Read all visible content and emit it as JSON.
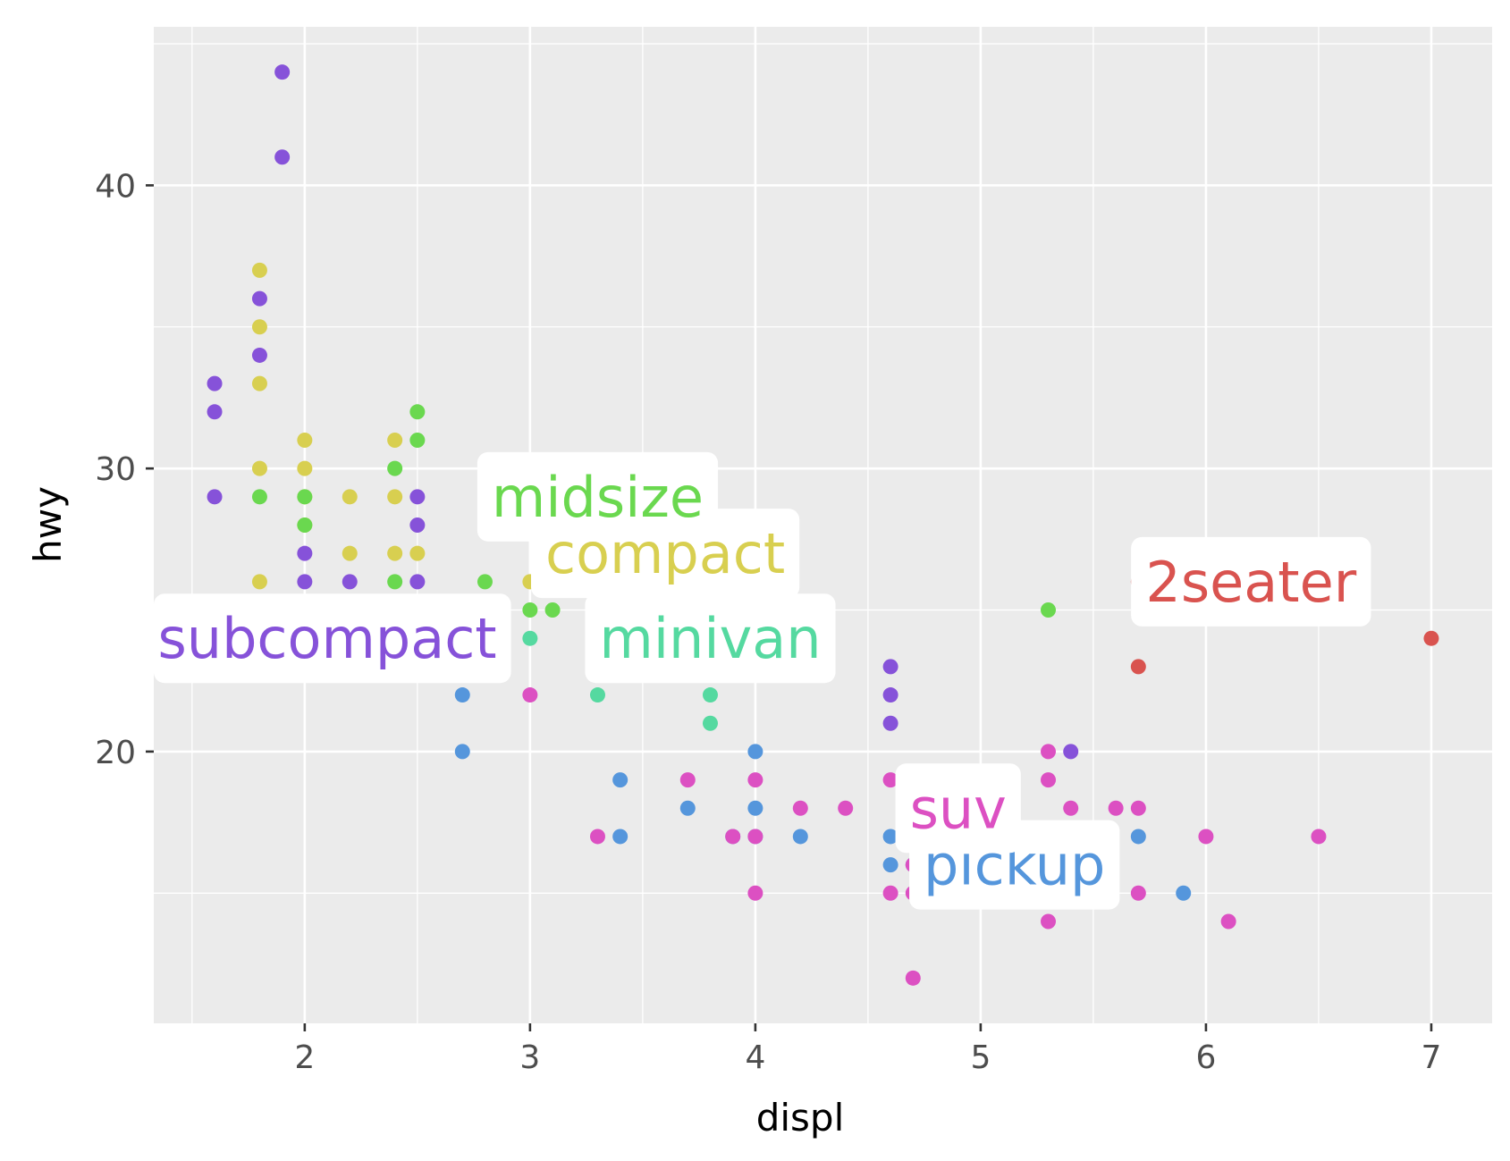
{
  "chart_data": {
    "type": "scatter",
    "xlabel": "displ",
    "ylabel": "hwy",
    "xlim": [
      1.33,
      7.27
    ],
    "ylim": [
      10.4,
      45.6
    ],
    "x_ticks": [
      2,
      3,
      4,
      5,
      6,
      7
    ],
    "y_ticks": [
      20,
      30,
      40
    ],
    "grid": true,
    "legend": "none",
    "series": [
      {
        "name": "2seater",
        "color": "#d9534f",
        "label_at": [
          6.2,
          26
        ],
        "points": [
          [
            5.7,
            26
          ],
          [
            5.7,
            23
          ],
          [
            6.2,
            26
          ],
          [
            6.2,
            25
          ],
          [
            7.0,
            24
          ]
        ]
      },
      {
        "name": "compact",
        "color": "#d8cf50",
        "label_at": [
          3.6,
          27
        ],
        "points": [
          [
            1.8,
            37
          ],
          [
            1.8,
            35
          ],
          [
            1.8,
            33
          ],
          [
            1.8,
            30
          ],
          [
            1.8,
            26
          ],
          [
            1.8,
            25
          ],
          [
            2.0,
            31
          ],
          [
            2.0,
            30
          ],
          [
            2.0,
            29
          ],
          [
            2.0,
            28
          ],
          [
            2.2,
            29
          ],
          [
            2.2,
            27
          ],
          [
            2.4,
            31
          ],
          [
            2.4,
            29
          ],
          [
            2.4,
            27
          ],
          [
            2.5,
            27
          ],
          [
            2.5,
            25
          ],
          [
            2.8,
            25
          ],
          [
            2.8,
            24
          ],
          [
            2.8,
            23
          ],
          [
            3.0,
            26
          ],
          [
            3.1,
            27
          ],
          [
            3.3,
            27
          ]
        ]
      },
      {
        "name": "midsize",
        "color": "#6ad84f",
        "label_at": [
          3.3,
          29
        ],
        "points": [
          [
            1.8,
            29
          ],
          [
            2.0,
            29
          ],
          [
            2.0,
            28
          ],
          [
            2.4,
            30
          ],
          [
            2.4,
            26
          ],
          [
            2.5,
            32
          ],
          [
            2.5,
            31
          ],
          [
            2.8,
            26
          ],
          [
            3.0,
            25
          ],
          [
            3.1,
            26
          ],
          [
            3.1,
            25
          ],
          [
            3.3,
            28
          ],
          [
            3.5,
            29
          ],
          [
            3.5,
            28
          ],
          [
            3.5,
            27
          ],
          [
            3.5,
            26
          ],
          [
            3.5,
            25
          ],
          [
            3.6,
            26
          ],
          [
            3.8,
            28
          ],
          [
            3.8,
            27
          ],
          [
            3.8,
            26
          ],
          [
            4.2,
            23
          ],
          [
            5.3,
            25
          ]
        ]
      },
      {
        "name": "minivan",
        "color": "#55d9a0",
        "label_at": [
          3.8,
          24
        ],
        "points": [
          [
            2.4,
            24
          ],
          [
            3.0,
            24
          ],
          [
            3.3,
            24
          ],
          [
            3.3,
            22
          ],
          [
            3.8,
            23
          ],
          [
            3.8,
            22
          ],
          [
            3.8,
            21
          ],
          [
            4.0,
            23
          ]
        ]
      },
      {
        "name": "pickup",
        "color": "#5596dc",
        "label_at": [
          5.15,
          16
        ],
        "points": [
          [
            2.7,
            22
          ],
          [
            2.7,
            20
          ],
          [
            3.4,
            19
          ],
          [
            3.4,
            17
          ],
          [
            3.7,
            18
          ],
          [
            3.9,
            17
          ],
          [
            4.0,
            20
          ],
          [
            4.0,
            18
          ],
          [
            4.0,
            17
          ],
          [
            4.2,
            17
          ],
          [
            4.6,
            17
          ],
          [
            4.6,
            16
          ],
          [
            4.7,
            16
          ],
          [
            5.2,
            17
          ],
          [
            5.2,
            16
          ],
          [
            5.2,
            15
          ],
          [
            5.4,
            15
          ],
          [
            5.7,
            17
          ],
          [
            5.9,
            15
          ]
        ]
      },
      {
        "name": "subcompact",
        "color": "#8652d9",
        "label_at": [
          2.1,
          24
        ],
        "points": [
          [
            1.6,
            33
          ],
          [
            1.6,
            32
          ],
          [
            1.6,
            29
          ],
          [
            1.8,
            36
          ],
          [
            1.8,
            34
          ],
          [
            1.9,
            44
          ],
          [
            1.9,
            41
          ],
          [
            2.0,
            27
          ],
          [
            2.0,
            26
          ],
          [
            2.2,
            26
          ],
          [
            2.5,
            29
          ],
          [
            2.5,
            28
          ],
          [
            2.5,
            26
          ],
          [
            2.7,
            24
          ],
          [
            3.8,
            25
          ],
          [
            4.0,
            26
          ],
          [
            4.0,
            24
          ],
          [
            4.6,
            23
          ],
          [
            4.6,
            22
          ],
          [
            4.6,
            21
          ],
          [
            5.4,
            20
          ]
        ]
      },
      {
        "name": "suv",
        "color": "#dc50c2",
        "label_at": [
          4.9,
          18
        ],
        "points": [
          [
            2.5,
            24
          ],
          [
            2.5,
            23
          ],
          [
            3.0,
            22
          ],
          [
            3.3,
            17
          ],
          [
            3.7,
            19
          ],
          [
            3.9,
            17
          ],
          [
            4.0,
            19
          ],
          [
            4.0,
            17
          ],
          [
            4.0,
            15
          ],
          [
            4.2,
            18
          ],
          [
            4.4,
            18
          ],
          [
            4.6,
            19
          ],
          [
            4.6,
            15
          ],
          [
            4.7,
            19
          ],
          [
            4.7,
            17
          ],
          [
            4.7,
            16
          ],
          [
            4.7,
            15
          ],
          [
            4.7,
            12
          ],
          [
            5.0,
            17
          ],
          [
            5.3,
            20
          ],
          [
            5.3,
            19
          ],
          [
            5.3,
            15
          ],
          [
            5.3,
            14
          ],
          [
            5.4,
            18
          ],
          [
            5.4,
            17
          ],
          [
            5.4,
            16
          ],
          [
            5.6,
            18
          ],
          [
            5.7,
            18
          ],
          [
            5.7,
            15
          ],
          [
            6.0,
            17
          ],
          [
            6.1,
            14
          ],
          [
            6.5,
            17
          ]
        ]
      }
    ]
  }
}
